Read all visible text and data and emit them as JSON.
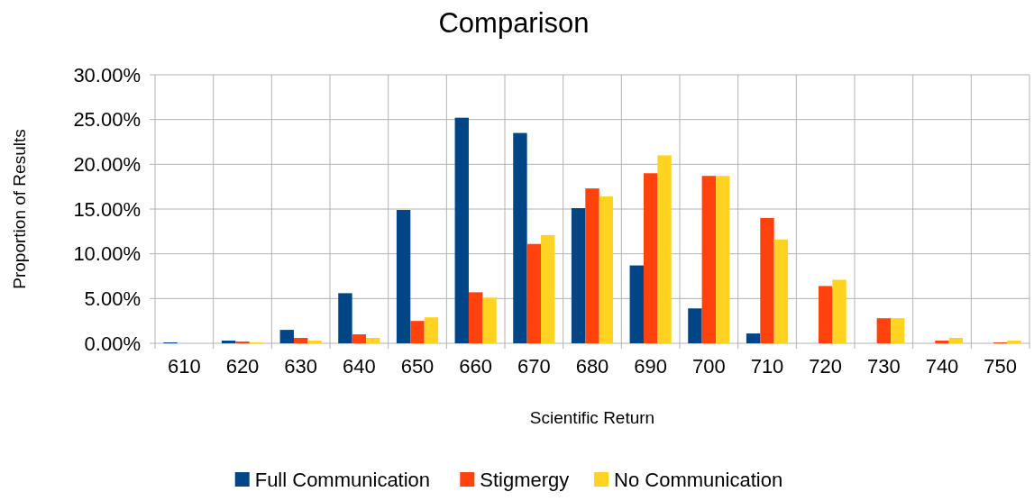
{
  "chart_data": {
    "type": "bar",
    "title": "Comparison",
    "xlabel": "Scientific Return",
    "ylabel": "Proportion of Results",
    "categories": [
      "610",
      "620",
      "630",
      "640",
      "650",
      "660",
      "670",
      "680",
      "690",
      "700",
      "710",
      "720",
      "730",
      "740",
      "750"
    ],
    "series": [
      {
        "name": "Full Communication",
        "color": "#004586",
        "values": [
          0.1,
          0.3,
          1.5,
          5.6,
          14.9,
          25.2,
          23.5,
          15.1,
          8.7,
          3.9,
          1.1,
          0,
          0,
          0,
          0
        ]
      },
      {
        "name": "Stigmergy",
        "color": "#ff420e",
        "values": [
          0,
          0.2,
          0.6,
          1.0,
          2.5,
          5.7,
          11.1,
          17.3,
          19.0,
          18.7,
          14.0,
          6.4,
          2.8,
          0.3,
          0.1
        ]
      },
      {
        "name": "No Communication",
        "color": "#ffd320",
        "values": [
          0,
          0.1,
          0.3,
          0.6,
          2.9,
          5.1,
          12.1,
          16.4,
          21.0,
          18.7,
          11.6,
          7.1,
          2.8,
          0.6,
          0.3
        ]
      }
    ],
    "ylim": [
      0,
      30
    ],
    "yticks": [
      {
        "value": 0,
        "label": "0.00%"
      },
      {
        "value": 5,
        "label": "5.00%"
      },
      {
        "value": 10,
        "label": "10.00%"
      },
      {
        "value": 15,
        "label": "15.00%"
      },
      {
        "value": 20,
        "label": "20.00%"
      },
      {
        "value": 25,
        "label": "25.00%"
      },
      {
        "value": 30,
        "label": "30.00%"
      }
    ],
    "grid": true,
    "legend": "bottom"
  }
}
